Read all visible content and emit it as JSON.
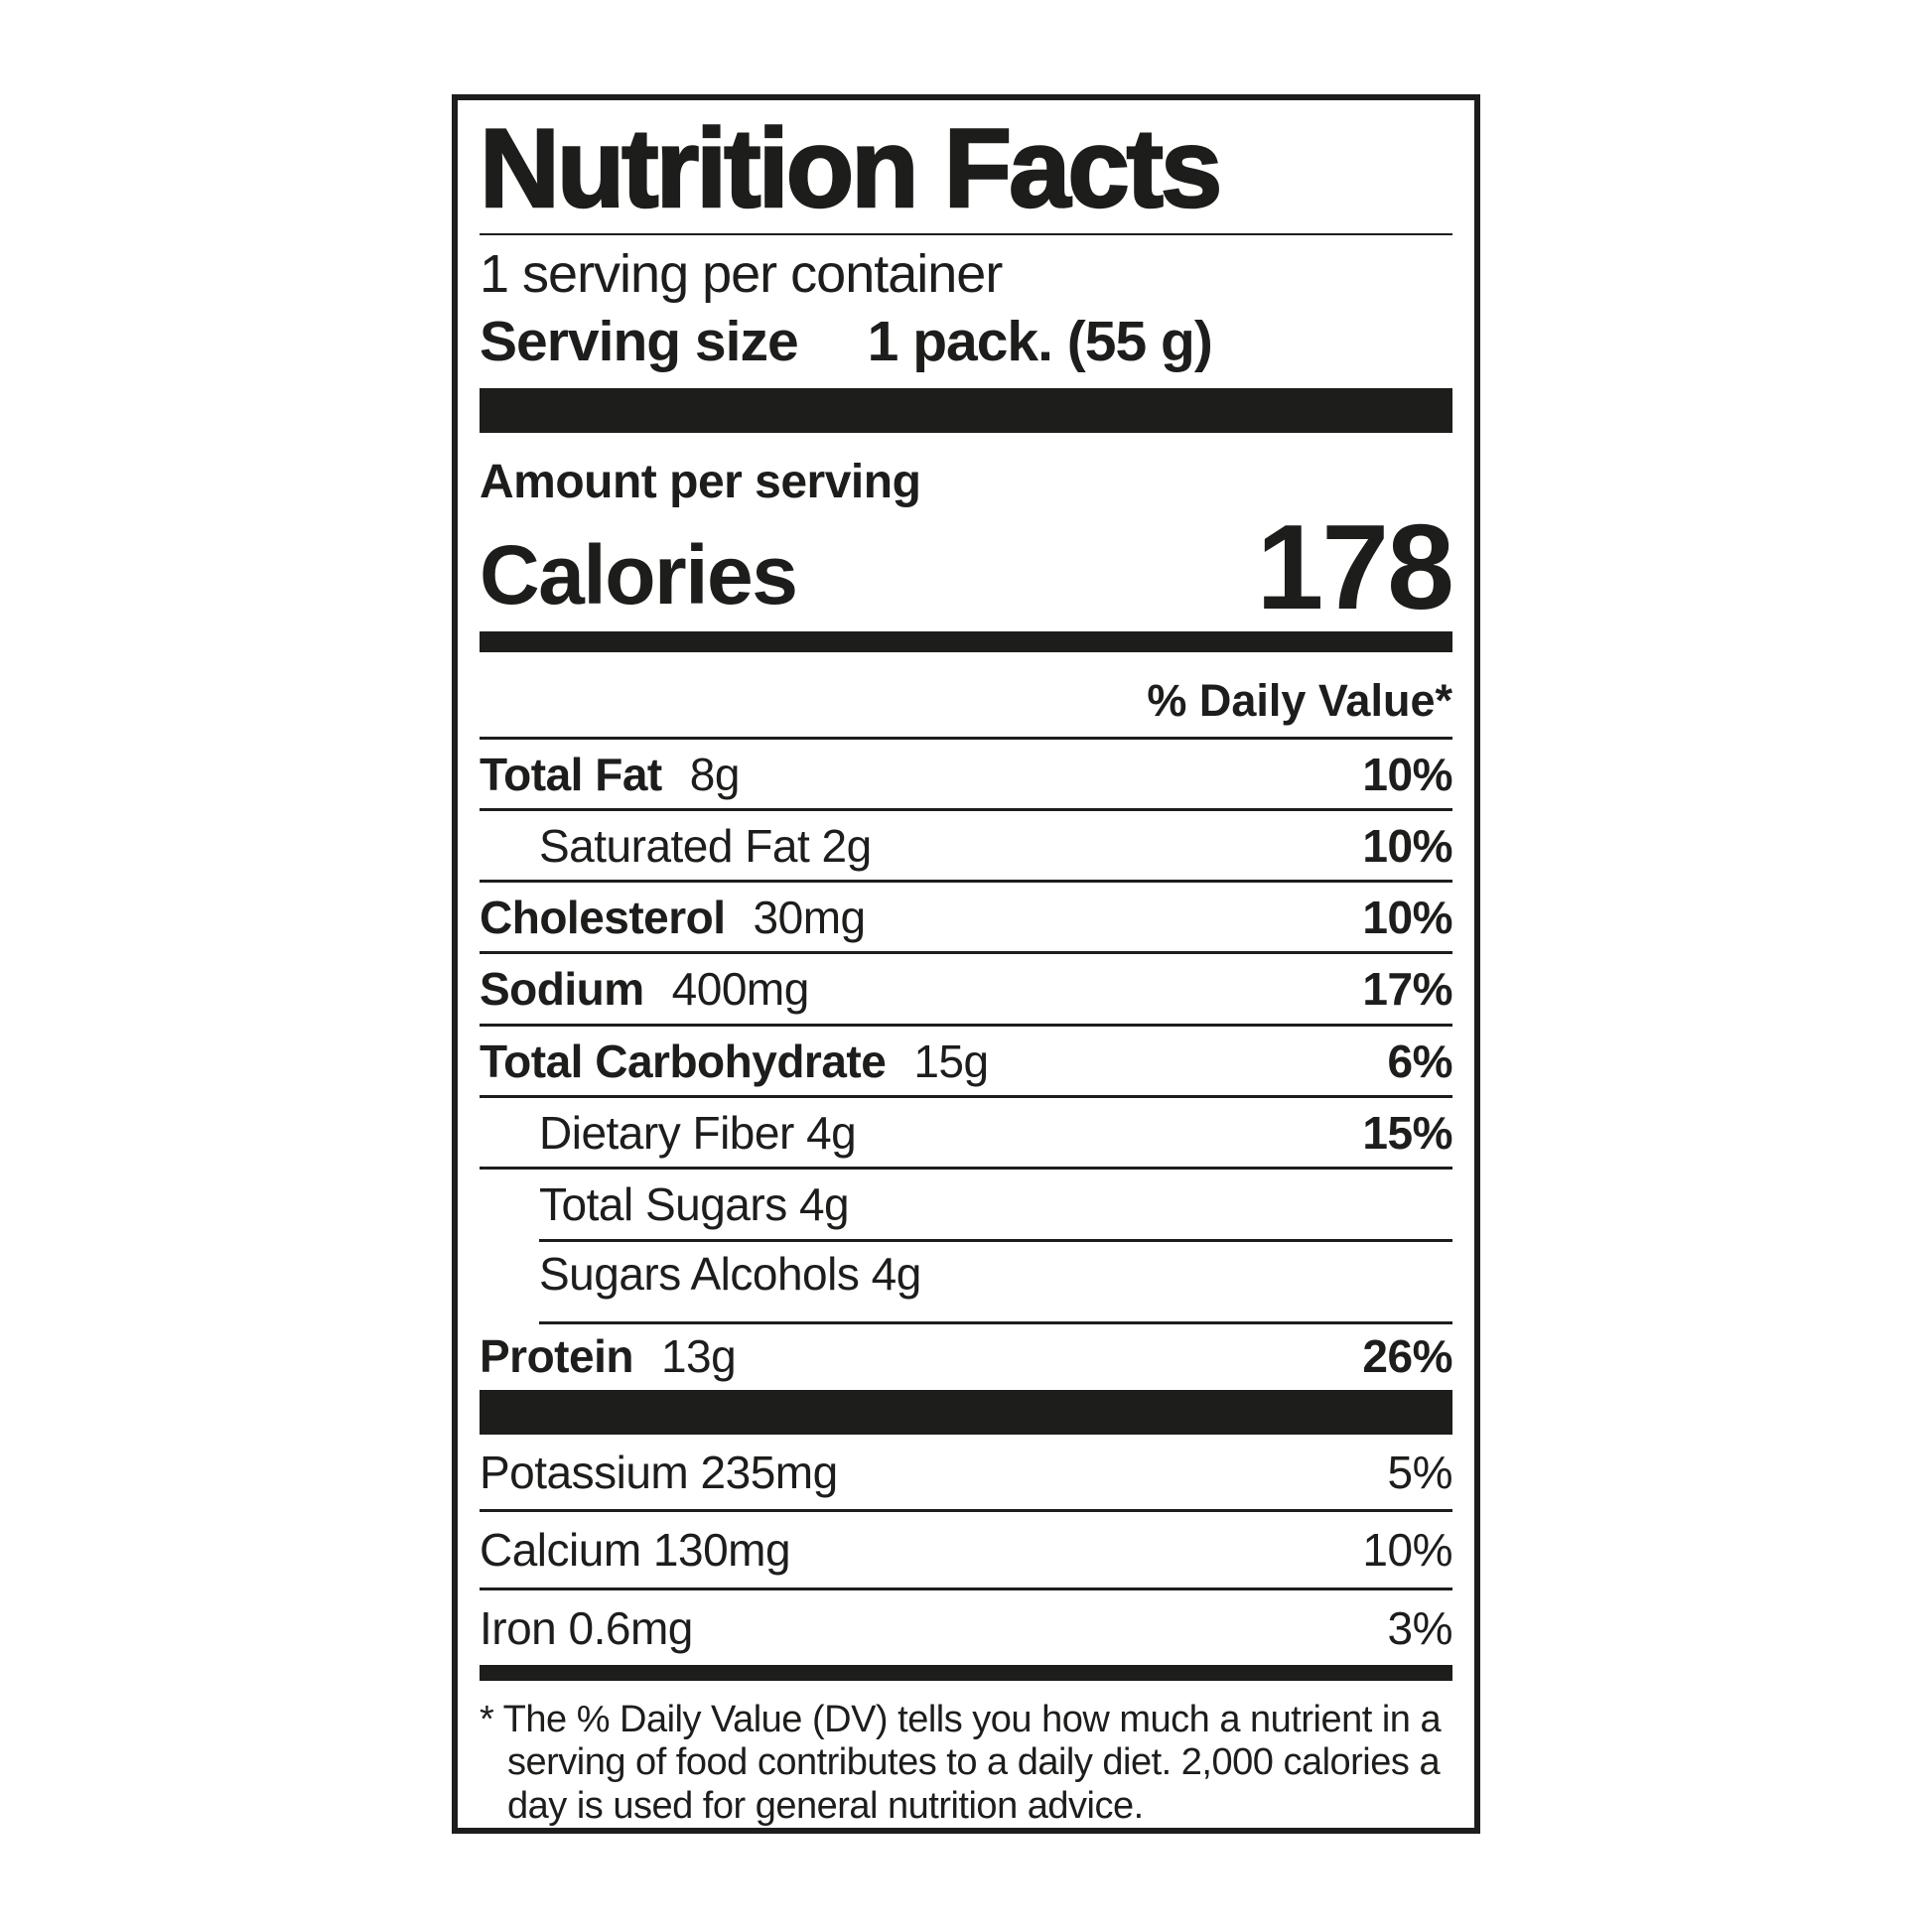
{
  "colors": {
    "ink": "#1d1d1b",
    "background": "#ffffff"
  },
  "label": {
    "title": "Nutrition Facts",
    "servings_per_container": "1 serving per container",
    "serving_size_label": "Serving size",
    "serving_size_value": "1 pack. (55 g)",
    "amount_per_serving": "Amount per serving",
    "calories_label": "Calories",
    "calories_value": "178",
    "daily_value_header": "% Daily Value*",
    "nutrients": [
      {
        "name": "Total Fat",
        "amount": "8g",
        "dv": "10%"
      },
      {
        "name": "Saturated Fat 2g",
        "amount": "",
        "dv": "10%"
      },
      {
        "name": "Cholesterol",
        "amount": "30mg",
        "dv": "10%"
      },
      {
        "name": "Sodium",
        "amount": "400mg",
        "dv": "17%"
      },
      {
        "name": "Total Carbohydrate",
        "amount": "15g",
        "dv": "6%"
      },
      {
        "name": "Dietary Fiber 4g",
        "amount": "",
        "dv": "15%"
      },
      {
        "name": "Total Sugars 4g",
        "amount": "",
        "dv": ""
      },
      {
        "name": "Sugars Alcohols 4g",
        "amount": "",
        "dv": ""
      },
      {
        "name": "Protein",
        "amount": "13g",
        "dv": "26%"
      }
    ],
    "minerals": [
      {
        "name": "Potassium 235mg",
        "dv": "5%"
      },
      {
        "name": "Calcium 130mg",
        "dv": "10%"
      },
      {
        "name": "Iron 0.6mg",
        "dv": "3%"
      }
    ],
    "footnote": "* The % Daily Value (DV) tells you how much a nutrient in a serving of food contributes to a daily diet. 2,000 calories a day is used for general nutrition advice."
  }
}
